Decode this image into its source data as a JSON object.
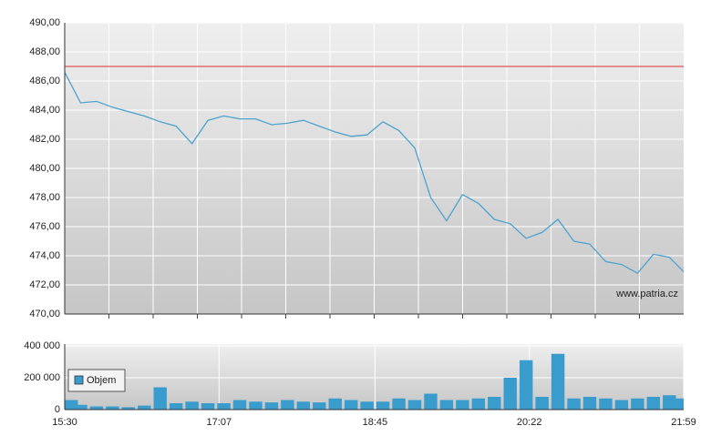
{
  "chart_data": [
    {
      "type": "line",
      "x": [
        930,
        940,
        950,
        960,
        970,
        980,
        990,
        1000,
        1010,
        1020,
        1030,
        1040,
        1050,
        1060,
        1070,
        1080,
        1090,
        1100,
        1110,
        1120,
        1130,
        1140,
        1150,
        1160,
        1170,
        1180,
        1190,
        1200,
        1210,
        1220,
        1230,
        1240,
        1250,
        1260,
        1270,
        1280,
        1290,
        1300,
        1310,
        1319
      ],
      "values": [
        486.6,
        484.5,
        484.6,
        484.2,
        483.9,
        483.6,
        483.2,
        482.9,
        481.7,
        483.3,
        483.6,
        483.4,
        483.4,
        483.0,
        483.1,
        483.3,
        482.9,
        482.5,
        482.2,
        482.3,
        483.2,
        482.6,
        481.4,
        478.0,
        476.4,
        478.2,
        477.6,
        476.5,
        476.2,
        475.2,
        475.6,
        476.5,
        475.0,
        474.8,
        473.6,
        473.4,
        472.8,
        474.1,
        473.9,
        472.9
      ],
      "color": "#4aa3cf",
      "xlim": [
        930,
        1319
      ],
      "ylim": [
        470,
        490
      ],
      "yticks": [
        {
          "value": 470,
          "label": "470,00"
        },
        {
          "value": 472,
          "label": "472,00"
        },
        {
          "value": 474,
          "label": "474,00"
        },
        {
          "value": 476,
          "label": "476,00"
        },
        {
          "value": 478,
          "label": "478,00"
        },
        {
          "value": 480,
          "label": "480,00"
        },
        {
          "value": 482,
          "label": "482,00"
        },
        {
          "value": 484,
          "label": "484,00"
        },
        {
          "value": 486,
          "label": "486,00"
        },
        {
          "value": 488,
          "label": "488,00"
        },
        {
          "value": 490,
          "label": "490,00"
        }
      ],
      "reference_line": 487,
      "reference_color": "#e03030",
      "watermark": "www.patria.cz",
      "grid": true
    },
    {
      "type": "bar",
      "x": [
        930,
        940,
        950,
        960,
        970,
        980,
        990,
        1000,
        1010,
        1020,
        1030,
        1040,
        1050,
        1060,
        1070,
        1080,
        1090,
        1100,
        1110,
        1120,
        1130,
        1140,
        1150,
        1160,
        1170,
        1180,
        1190,
        1200,
        1210,
        1220,
        1230,
        1240,
        1250,
        1260,
        1270,
        1280,
        1290,
        1300,
        1310,
        1319
      ],
      "series": [
        {
          "name": "Objem",
          "color": "#3a9ccc",
          "values": [
            60000,
            30000,
            20000,
            20000,
            15000,
            25000,
            140000,
            40000,
            50000,
            40000,
            40000,
            60000,
            50000,
            45000,
            60000,
            50000,
            45000,
            70000,
            60000,
            50000,
            50000,
            70000,
            60000,
            100000,
            60000,
            60000,
            70000,
            80000,
            200000,
            310000,
            80000,
            350000,
            70000,
            80000,
            70000,
            60000,
            70000,
            80000,
            90000,
            70000
          ]
        }
      ],
      "xlim": [
        930,
        1319
      ],
      "ylim": [
        0,
        400000
      ],
      "yticks": [
        0,
        {
          "value": 200000,
          "label": "200 000"
        },
        {
          "value": 400000,
          "label": "400 000"
        }
      ],
      "xticks": [
        {
          "value": 930,
          "label": "15:30"
        },
        {
          "value": 1027,
          "label": "17:07"
        },
        {
          "value": 1125,
          "label": "18:45"
        },
        {
          "value": 1222,
          "label": "20:22"
        },
        {
          "value": 1319,
          "label": "21:59"
        }
      ],
      "legend": "top-left",
      "grid": true
    }
  ]
}
